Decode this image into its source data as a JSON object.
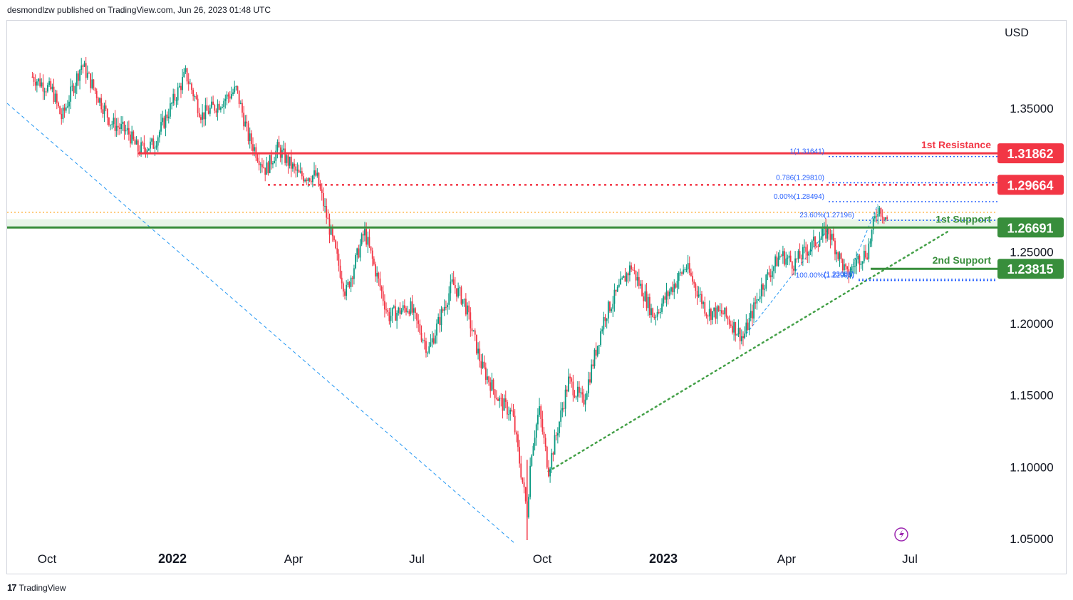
{
  "header": {
    "published_text": "desmondlzw published on TradingView.com, Jun 26, 2023 01:48 UTC"
  },
  "footer": {
    "brand": "TradingView",
    "logo_glyph": "17"
  },
  "chart_data": {
    "type": "candlestick",
    "currency": "USD",
    "y_ticks": [
      "1.35000",
      "1.25000",
      "1.20000",
      "1.15000",
      "1.10000",
      "1.05000"
    ],
    "x_ticks": [
      "Oct",
      "2022",
      "Apr",
      "Jul",
      "Oct",
      "2023",
      "Apr",
      "Jul"
    ],
    "levels": [
      {
        "name": "1st Resistance",
        "value": "1.31862",
        "color": "#f23645",
        "style": "solid"
      },
      {
        "name": "",
        "value": "1.29664",
        "color": "#f23645",
        "style": "dotted"
      },
      {
        "name": "1st Support",
        "value": "1.26691",
        "color": "#388e3c",
        "style": "solid"
      },
      {
        "name": "2nd Support",
        "value": "1.23815",
        "color": "#388e3c",
        "style": "solid"
      }
    ],
    "fib_labels": [
      {
        "text": "1(1.31641)",
        "value": 1.31641
      },
      {
        "text": "0.786(1.29810)",
        "value": 1.2981
      },
      {
        "text": "0.00%(1.28494)",
        "value": 1.28494
      },
      {
        "text": "23.60%(1.27196)",
        "value": 1.27196
      },
      {
        "text": "(1.23085)",
        "value": 1.23085
      },
      {
        "text": "100.00%(1.22996)",
        "value": 1.22996
      }
    ],
    "price_path": [
      [
        "2021-09-20",
        1.372
      ],
      [
        "2021-10-05",
        1.362
      ],
      [
        "2021-10-12",
        1.343
      ],
      [
        "2021-10-27",
        1.381
      ],
      [
        "2021-11-18",
        1.34
      ],
      [
        "2021-12-01",
        1.333
      ],
      [
        "2021-12-08",
        1.321
      ],
      [
        "2021-12-20",
        1.325
      ],
      [
        "2022-01-13",
        1.374
      ],
      [
        "2022-01-25",
        1.345
      ],
      [
        "2022-02-05",
        1.352
      ],
      [
        "2022-02-20",
        1.363
      ],
      [
        "2022-03-01",
        1.33
      ],
      [
        "2022-03-14",
        1.307
      ],
      [
        "2022-03-23",
        1.322
      ],
      [
        "2022-04-08",
        1.303
      ],
      [
        "2022-04-21",
        1.303
      ],
      [
        "2022-05-13",
        1.221
      ],
      [
        "2022-05-27",
        1.264
      ],
      [
        "2022-06-14",
        1.205
      ],
      [
        "2022-06-30",
        1.212
      ],
      [
        "2022-07-14",
        1.181
      ],
      [
        "2022-08-01",
        1.228
      ],
      [
        "2022-08-10",
        1.215
      ],
      [
        "2022-08-23",
        1.17
      ],
      [
        "2022-09-06",
        1.145
      ],
      [
        "2022-09-15",
        1.137
      ],
      [
        "2022-09-26",
        1.068
      ],
      [
        "2022-09-29",
        1.11
      ],
      [
        "2022-10-05",
        1.14
      ],
      [
        "2022-10-12",
        1.098
      ],
      [
        "2022-10-27",
        1.16
      ],
      [
        "2022-11-07",
        1.145
      ],
      [
        "2022-11-23",
        1.205
      ],
      [
        "2022-12-13",
        1.24
      ],
      [
        "2022-12-30",
        1.205
      ],
      [
        "2023-01-23",
        1.24
      ],
      [
        "2023-02-08",
        1.208
      ],
      [
        "2023-02-20",
        1.207
      ],
      [
        "2023-03-07",
        1.19
      ],
      [
        "2023-03-21",
        1.226
      ],
      [
        "2023-04-04",
        1.248
      ],
      [
        "2023-04-14",
        1.242
      ],
      [
        "2023-04-28",
        1.255
      ],
      [
        "2023-05-10",
        1.265
      ],
      [
        "2023-05-24",
        1.233
      ],
      [
        "2023-06-01",
        1.245
      ],
      [
        "2023-06-08",
        1.25
      ],
      [
        "2023-06-16",
        1.281
      ],
      [
        "2023-06-20",
        1.277
      ],
      [
        "2023-06-23",
        1.273
      ]
    ],
    "colors": {
      "up": "#089981",
      "down": "#f23645",
      "fib": "#2962ff",
      "trend": "#43a047",
      "zone": "#e8f5e9"
    }
  }
}
